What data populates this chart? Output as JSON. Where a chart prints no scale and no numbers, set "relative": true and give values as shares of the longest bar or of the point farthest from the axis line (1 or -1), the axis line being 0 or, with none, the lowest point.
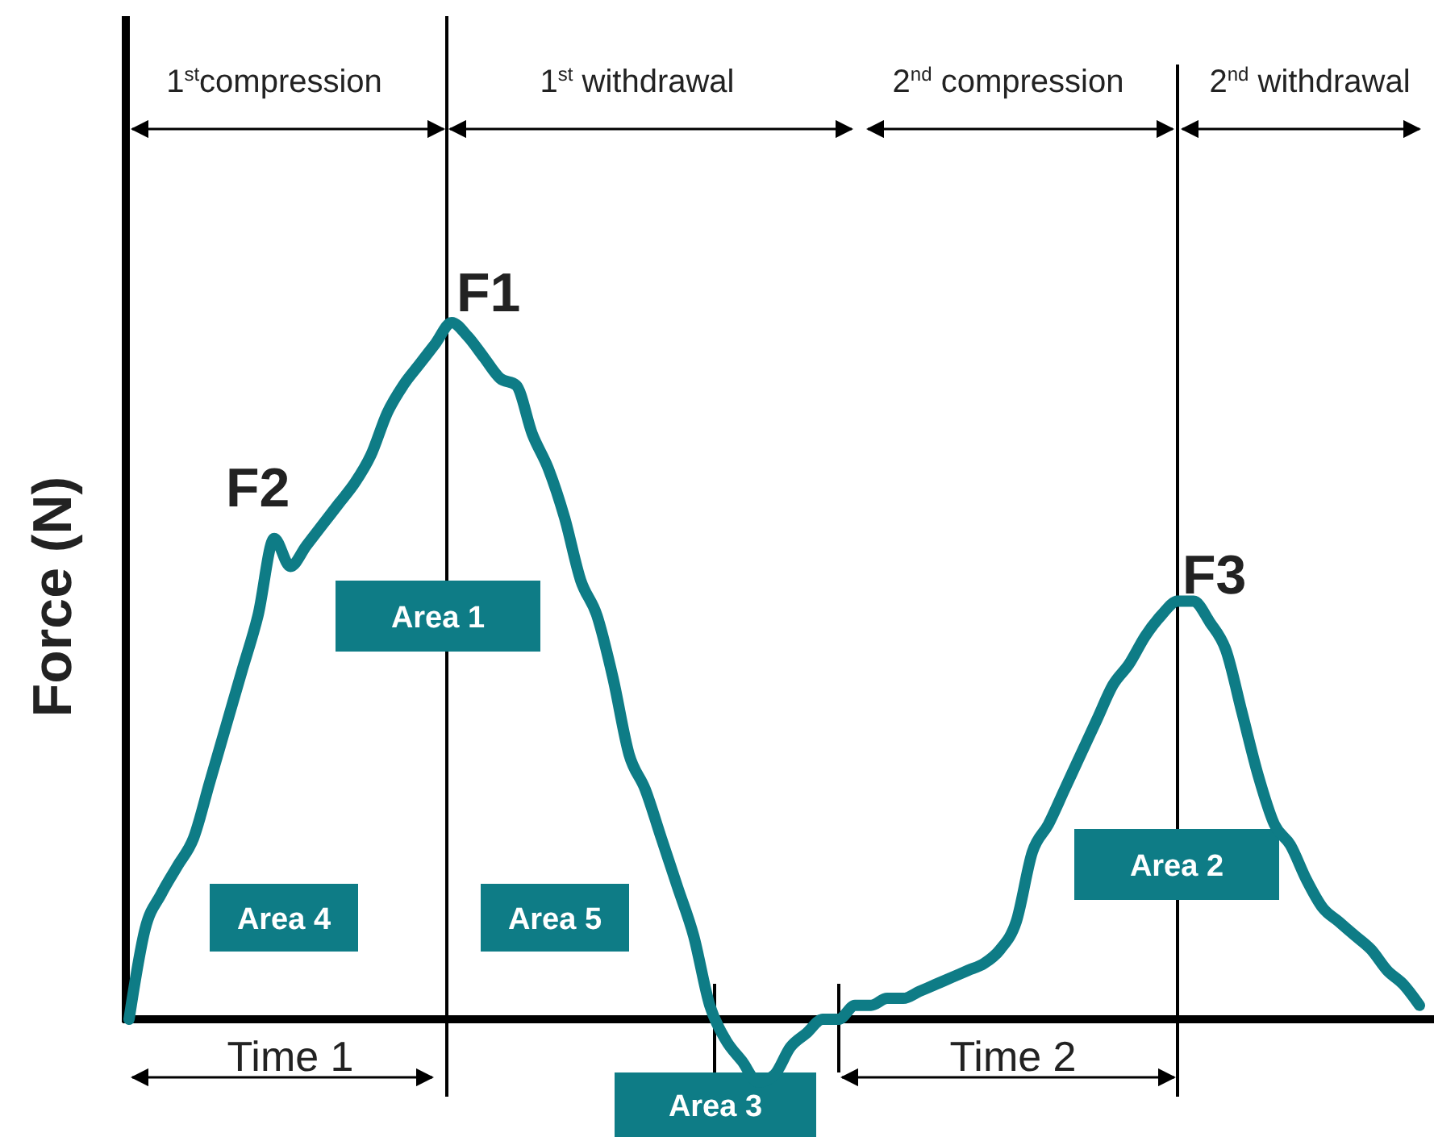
{
  "chart_data": {
    "type": "line",
    "relative": true,
    "ylabel": "Force (N)",
    "categories": [
      null,
      null,
      null,
      null,
      null,
      null,
      null,
      null,
      null,
      null,
      null,
      null,
      null,
      null,
      null,
      null,
      null,
      null,
      null,
      null,
      null,
      null,
      null,
      null,
      null,
      null,
      null,
      null,
      null,
      null,
      null,
      null,
      null,
      null,
      null,
      null,
      null,
      null,
      null,
      null,
      null,
      null,
      null,
      null,
      null,
      null,
      null,
      null,
      null,
      null,
      null,
      null,
      null,
      null,
      null,
      null,
      null,
      null,
      null,
      null,
      null,
      null,
      null,
      null,
      null,
      null,
      null,
      null,
      null,
      null,
      null,
      null,
      null,
      null,
      null,
      null,
      null,
      null,
      null,
      null,
      null
    ],
    "series": [
      {
        "color": "#0e7c86",
        "values": [
          0.0,
          0.13,
          0.18,
          0.22,
          0.26,
          0.34,
          0.42,
          0.5,
          0.58,
          0.69,
          0.65,
          0.68,
          0.71,
          0.74,
          0.77,
          0.81,
          0.87,
          0.91,
          0.94,
          0.97,
          1.0,
          0.98,
          0.95,
          0.92,
          0.91,
          0.84,
          0.79,
          0.72,
          0.63,
          0.58,
          0.49,
          0.38,
          0.33,
          0.26,
          0.19,
          0.12,
          0.02,
          -0.03,
          -0.06,
          -0.09,
          -0.08,
          -0.04,
          -0.02,
          0.0,
          0.0,
          0.02,
          0.02,
          0.03,
          0.03,
          0.04,
          0.05,
          0.06,
          0.07,
          0.08,
          0.1,
          0.14,
          0.24,
          0.28,
          0.33,
          0.38,
          0.43,
          0.48,
          0.51,
          0.55,
          0.58,
          0.6,
          0.6,
          0.57,
          0.53,
          0.44,
          0.35,
          0.28,
          0.25,
          0.2,
          0.16,
          0.14,
          0.12,
          0.1,
          0.07,
          0.05,
          0.02
        ]
      }
    ],
    "annotations": [
      "F1",
      "F2",
      "F3",
      "Area 1",
      "Area 2",
      "Area 3",
      "Area 4",
      "Area 5",
      "1$^{st}$compression",
      "1$^{st}$ withdrawal",
      "2$^{nd}$ compression",
      "2$^{nd}$ withdrawal",
      "Time 1",
      "Time 2"
    ],
    "marker": "none",
    "line_style": "solid"
  }
}
